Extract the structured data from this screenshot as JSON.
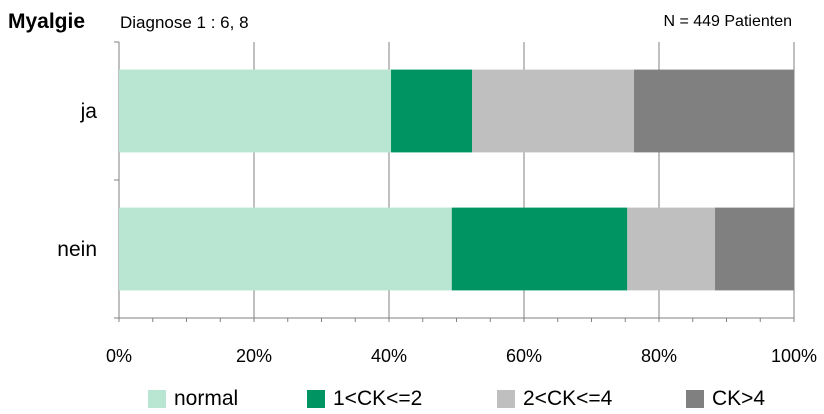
{
  "chart_data": {
    "type": "bar",
    "orientation": "horizontal",
    "stacked": "percent",
    "title": "Myalgie",
    "subtitle": "Diagnose 1 : 6, 8",
    "note": "N = 449 Patienten",
    "categories": [
      "ja",
      "nein"
    ],
    "series": [
      {
        "name": "normal",
        "color": "#b8e6d2",
        "values": [
          40.3,
          49.3
        ]
      },
      {
        "name": "1<CK<=2",
        "color": "#009462",
        "values": [
          12.0,
          26.0
        ]
      },
      {
        "name": "2<CK<=4",
        "color": "#bfbfbf",
        "values": [
          24.0,
          13.0
        ]
      },
      {
        "name": "CK>4",
        "color": "#808080",
        "values": [
          23.7,
          11.7
        ]
      }
    ],
    "xlim": [
      0,
      100
    ],
    "xticks": [
      "0%",
      "20%",
      "40%",
      "60%",
      "80%",
      "100%"
    ],
    "grid": true,
    "legend": "bottom"
  }
}
